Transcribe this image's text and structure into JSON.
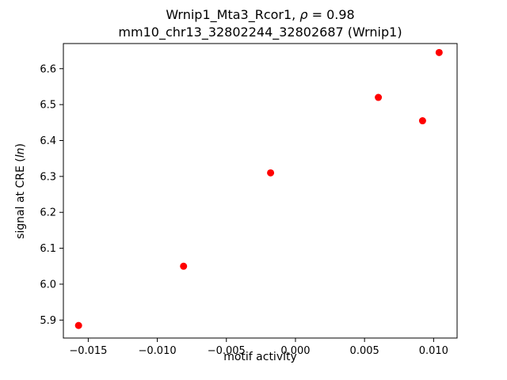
{
  "figure": {
    "title1_prefix": "Wrnip1_Mta3_Rcor1, ",
    "title1_rho": "ρ",
    "title1_suffix": " = 0.98",
    "title_line2": "mm10_chr13_32802244_32802687 (Wrnip1)",
    "xlabel": "motif activity",
    "ylabel_prefix": "signal at CRE (",
    "ylabel_italic": "ln",
    "ylabel_suffix": ")"
  },
  "chart_data": {
    "type": "scatter",
    "title": "Wrnip1_Mta3_Rcor1, ρ = 0.98\nmm10_chr13_32802244_32802687 (Wrnip1)",
    "xlabel": "motif activity",
    "ylabel": "signal at CRE (ln)",
    "marker_color": "#ff0000",
    "marker_radius_px": 4.5,
    "grid": false,
    "legend": null,
    "xlim": [
      -0.0168,
      0.0117
    ],
    "ylim": [
      5.85,
      6.67
    ],
    "x_ticks": [
      {
        "value": -0.015,
        "label": "−0.015"
      },
      {
        "value": -0.01,
        "label": "−0.010"
      },
      {
        "value": -0.005,
        "label": "−0.005"
      },
      {
        "value": 0.0,
        "label": "0.000"
      },
      {
        "value": 0.005,
        "label": "0.005"
      },
      {
        "value": 0.01,
        "label": "0.010"
      }
    ],
    "y_ticks": [
      {
        "value": 5.9,
        "label": "5.9"
      },
      {
        "value": 6.0,
        "label": "6.0"
      },
      {
        "value": 6.1,
        "label": "6.1"
      },
      {
        "value": 6.2,
        "label": "6.2"
      },
      {
        "value": 6.3,
        "label": "6.3"
      },
      {
        "value": 6.4,
        "label": "6.4"
      },
      {
        "value": 6.5,
        "label": "6.5"
      },
      {
        "value": 6.6,
        "label": "6.6"
      }
    ],
    "points": [
      {
        "x": -0.0157,
        "y": 5.885
      },
      {
        "x": -0.0081,
        "y": 6.05
      },
      {
        "x": -0.0018,
        "y": 6.31
      },
      {
        "x": 0.006,
        "y": 6.52
      },
      {
        "x": 0.0092,
        "y": 6.455
      },
      {
        "x": 0.0104,
        "y": 6.645
      }
    ]
  }
}
